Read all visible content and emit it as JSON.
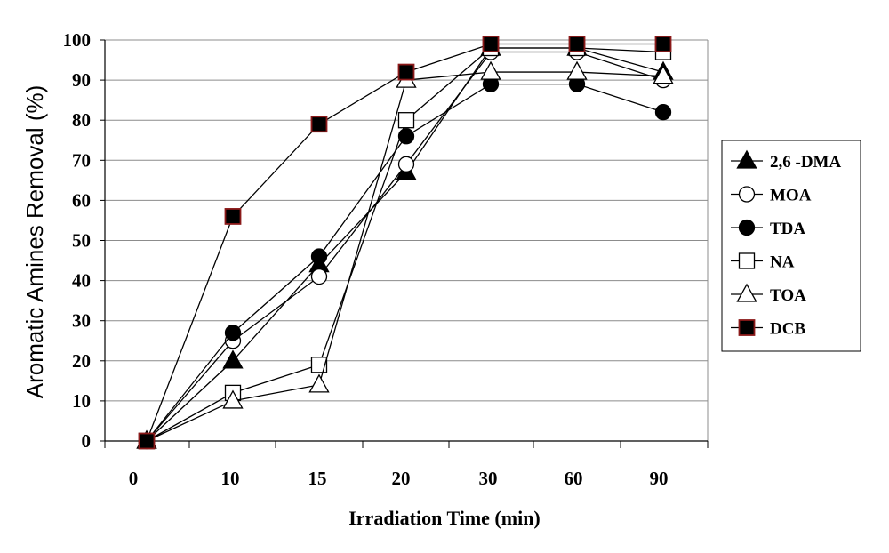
{
  "chart_data": {
    "type": "line",
    "xlabel": "Irradiation Time (min)",
    "ylabel": "Aromatic Amines Removal (%)",
    "categories": [
      "0",
      "10",
      "15",
      "20",
      "30",
      "60",
      "90"
    ],
    "ylim": [
      0,
      100
    ],
    "yticks": [
      "0",
      "10",
      "20",
      "30",
      "40",
      "50",
      "60",
      "70",
      "80",
      "90",
      "100"
    ],
    "grid": "horizontal",
    "legend_position": "right",
    "series": [
      {
        "name": "2,6 -DMA",
        "marker": "filled-triangle",
        "color": "#000000",
        "values": [
          0,
          20,
          44,
          67,
          98,
          98,
          92
        ]
      },
      {
        "name": "MOA",
        "marker": "open-circle",
        "color": "#000000",
        "values": [
          0,
          25,
          41,
          69,
          97,
          97,
          90
        ]
      },
      {
        "name": "TDA",
        "marker": "filled-circle",
        "color": "#000000",
        "values": [
          0,
          27,
          46,
          76,
          89,
          89,
          82
        ]
      },
      {
        "name": "NA",
        "marker": "open-square",
        "color": "#000000",
        "values": [
          0,
          12,
          19,
          80,
          98,
          98,
          97
        ]
      },
      {
        "name": "TOA",
        "marker": "open-triangle",
        "color": "#000000",
        "values": [
          0,
          10,
          14,
          90,
          92,
          92,
          91
        ]
      },
      {
        "name": "DCB",
        "marker": "filled-square",
        "color": "#000000",
        "edge_color": "#8B1A1A",
        "values": [
          0,
          56,
          79,
          92,
          99,
          99,
          99
        ]
      }
    ]
  }
}
